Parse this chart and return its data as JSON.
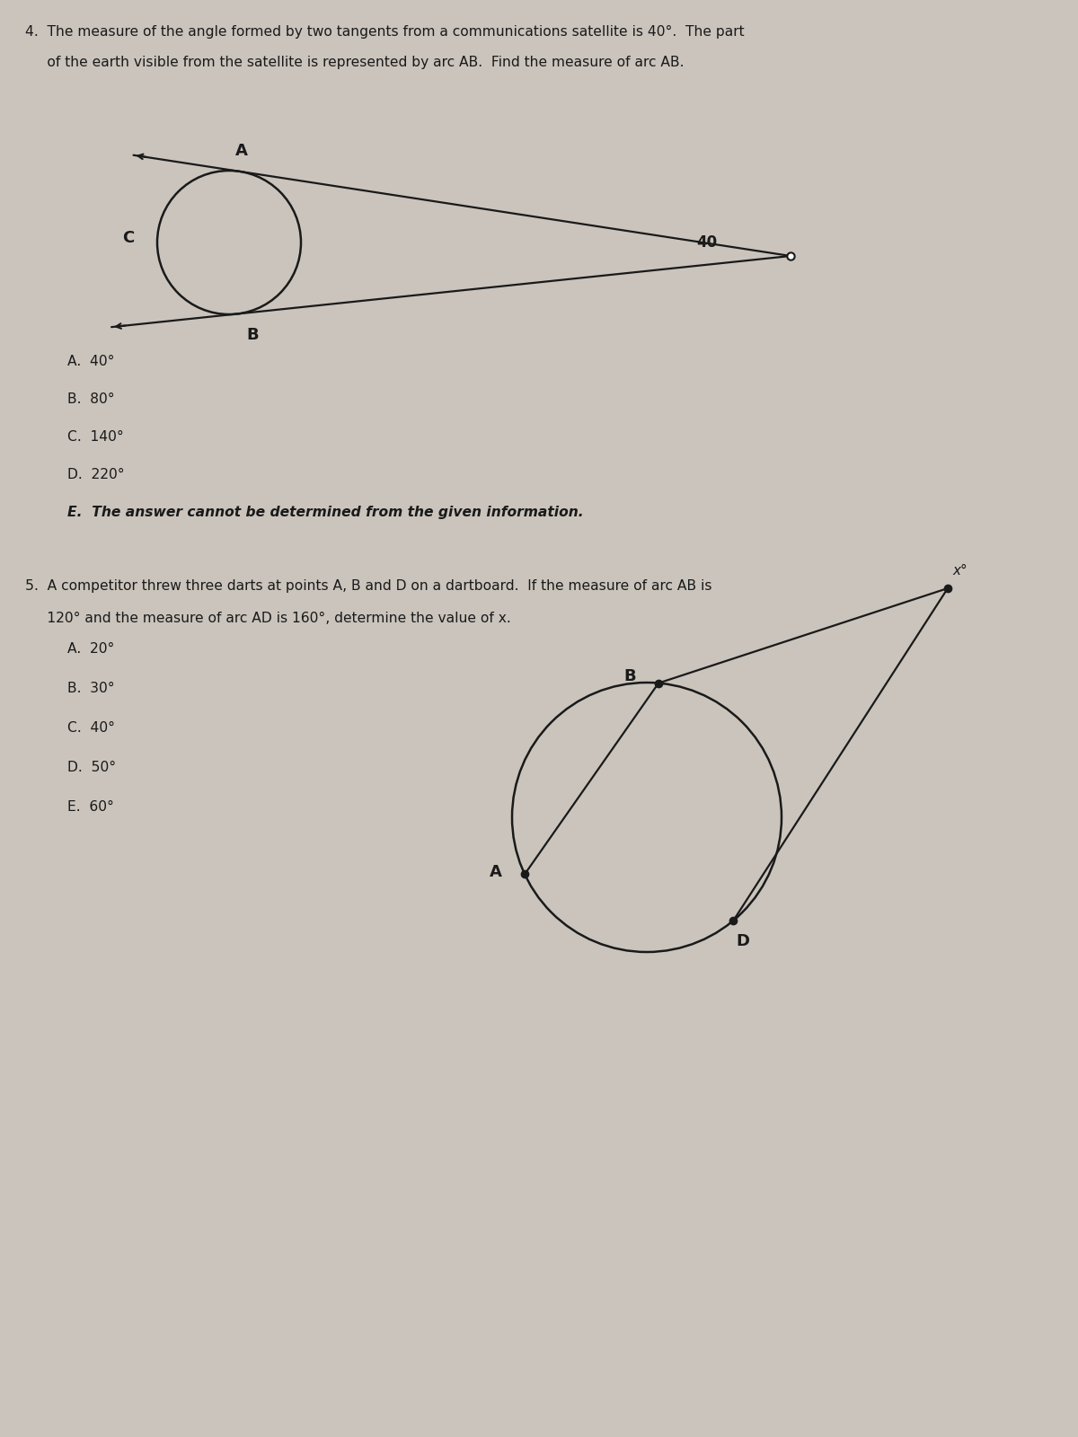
{
  "bg_color": "#cac4bc",
  "text_color": "#1a1a1a",
  "q4_title_line1": "4.  The measure of the angle formed by two tangents from a communications satellite is 40°.  The part",
  "q4_title_line2": "     of the earth visible from the satellite is represented by arc AB.  Find the measure of arc AB.",
  "q4_choices": [
    "A.  40°",
    "B.  80°",
    "C.  140°",
    "D.  220°",
    "E.  The answer cannot be determined from the given information."
  ],
  "q5_title_line1": "5.  A competitor threw three darts at points A, B and D on a dartboard.  If the measure of arc AB is",
  "q5_title_line2": "     120° and the measure of arc AD is 160°, determine the value of x.",
  "q5_choices": [
    "A.  20°",
    "B.  30°",
    "C.  40°",
    "D.  50°",
    "E.  60°"
  ],
  "fig_width": 12,
  "fig_height": 16
}
